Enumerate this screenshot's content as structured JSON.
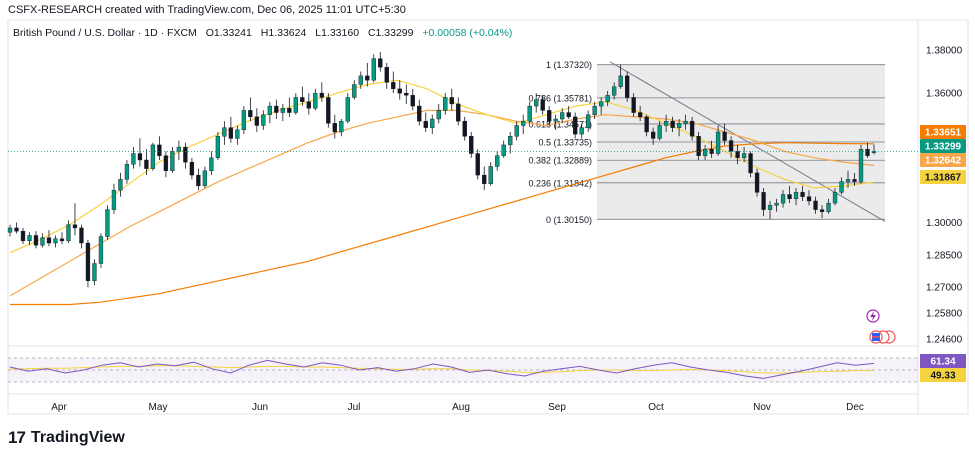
{
  "header": {
    "credit": "CSFX-RESEARCH created with TradingView.com, Dec 06, 2025 11:01 UTC+5:30",
    "symbol": "British Pound / U.S. Dollar · 1D · FXCM",
    "open": "O1.33241",
    "high": "H1.33624",
    "low": "L1.33160",
    "close": "C1.33299",
    "change": "+0.00058 (+0.04%)"
  },
  "brand": {
    "logo": "17",
    "name": "TradingView"
  },
  "colors": {
    "up": "#26a69a",
    "down": "#ef5350",
    "candle_body_up": "#089981",
    "candle_body_down": "#131722",
    "ma_slow": "#f57c00",
    "ma_mid": "#f7a64a",
    "ma_fast": "#f5d33f",
    "rsi": "#7e57c2",
    "rsi_ma": "#f5d33f",
    "fib_zone": "#e8e8e8",
    "trendline": "#787b86"
  },
  "chart_data": {
    "type": "candlestick",
    "price_axis": {
      "ticks": [
        "1.38000",
        "1.36000",
        "1.34000",
        "1.32000",
        "1.30000",
        "1.28500",
        "1.27000",
        "1.25800",
        "1.24600"
      ]
    },
    "time_axis": {
      "ticks": [
        "Apr",
        "May",
        "Jun",
        "Jul",
        "Aug",
        "Sep",
        "Oct",
        "Nov",
        "Dec"
      ]
    },
    "price_labels": [
      {
        "value": "1.33651",
        "color": "#f57c00",
        "text_color": "#ffffff"
      },
      {
        "value": "1.33299",
        "color": "#089981",
        "text_color": "#ffffff"
      },
      {
        "value": "1.32642",
        "color": "#f7a64a",
        "text_color": "#ffffff"
      },
      {
        "value": "1.31867",
        "color": "#f5d33f",
        "text_color": "#131722"
      }
    ],
    "fibonacci": [
      {
        "label": "1 (1.37320)",
        "value": 1.3732
      },
      {
        "label": "0.786 (1.35781)",
        "value": 1.35781
      },
      {
        "label": "0.618 (1.34571)",
        "value": 1.34571
      },
      {
        "label": "0.5 (1.33735)",
        "value": 1.33735
      },
      {
        "label": "0.382 (1.32889)",
        "value": 1.32889
      },
      {
        "label": "0.236 (1.31842)",
        "value": 1.31842
      },
      {
        "label": "0 (1.30150)",
        "value": 1.3015
      }
    ],
    "rsi": {
      "value": "61.34",
      "ma_value": "49.33"
    },
    "ohlc": [
      [
        1.2955,
        1.299,
        1.2935,
        1.2975
      ],
      [
        1.2975,
        1.3,
        1.295,
        1.296
      ],
      [
        1.296,
        1.2975,
        1.29,
        1.2915
      ],
      [
        1.2915,
        1.2955,
        1.2895,
        1.294
      ],
      [
        1.294,
        1.296,
        1.288,
        1.2895
      ],
      [
        1.2895,
        1.295,
        1.2885,
        1.293
      ],
      [
        1.293,
        1.2965,
        1.289,
        1.2905
      ],
      [
        1.2905,
        1.294,
        1.2885,
        1.2925
      ],
      [
        1.2925,
        1.2955,
        1.29,
        1.2915
      ],
      [
        1.2915,
        1.301,
        1.2905,
        1.299
      ],
      [
        1.299,
        1.309,
        1.294,
        1.2975
      ],
      [
        1.2975,
        1.299,
        1.288,
        1.2905
      ],
      [
        1.2905,
        1.292,
        1.27,
        1.273
      ],
      [
        1.273,
        1.283,
        1.271,
        1.281
      ],
      [
        1.281,
        1.295,
        1.279,
        1.2935
      ],
      [
        1.2935,
        1.308,
        1.292,
        1.306
      ],
      [
        1.306,
        1.318,
        1.304,
        1.315
      ],
      [
        1.315,
        1.323,
        1.312,
        1.32
      ],
      [
        1.32,
        1.329,
        1.318,
        1.327
      ],
      [
        1.327,
        1.335,
        1.325,
        1.332
      ],
      [
        1.332,
        1.339,
        1.326,
        1.329
      ],
      [
        1.329,
        1.334,
        1.322,
        1.325
      ],
      [
        1.325,
        1.337,
        1.324,
        1.336
      ],
      [
        1.336,
        1.34,
        1.329,
        1.331
      ],
      [
        1.331,
        1.333,
        1.321,
        1.324
      ],
      [
        1.324,
        1.335,
        1.323,
        1.333
      ],
      [
        1.333,
        1.338,
        1.329,
        1.335
      ],
      [
        1.335,
        1.337,
        1.325,
        1.328
      ],
      [
        1.328,
        1.33,
        1.32,
        1.322
      ],
      [
        1.322,
        1.325,
        1.315,
        1.317
      ],
      [
        1.317,
        1.326,
        1.316,
        1.324
      ],
      [
        1.324,
        1.333,
        1.322,
        1.33
      ],
      [
        1.33,
        1.342,
        1.329,
        1.34
      ],
      [
        1.34,
        1.347,
        1.336,
        1.344
      ],
      [
        1.344,
        1.349,
        1.337,
        1.339
      ],
      [
        1.339,
        1.345,
        1.336,
        1.343
      ],
      [
        1.343,
        1.354,
        1.341,
        1.352
      ],
      [
        1.352,
        1.358,
        1.347,
        1.349
      ],
      [
        1.349,
        1.353,
        1.342,
        1.345
      ],
      [
        1.345,
        1.352,
        1.343,
        1.35
      ],
      [
        1.35,
        1.356,
        1.346,
        1.354
      ],
      [
        1.354,
        1.357,
        1.348,
        1.351
      ],
      [
        1.351,
        1.355,
        1.347,
        1.353
      ],
      [
        1.353,
        1.358,
        1.349,
        1.351
      ],
      [
        1.351,
        1.36,
        1.35,
        1.358
      ],
      [
        1.358,
        1.363,
        1.354,
        1.356
      ],
      [
        1.356,
        1.36,
        1.35,
        1.353
      ],
      [
        1.353,
        1.362,
        1.352,
        1.36
      ],
      [
        1.36,
        1.365,
        1.356,
        1.358
      ],
      [
        1.358,
        1.36,
        1.344,
        1.346
      ],
      [
        1.346,
        1.35,
        1.339,
        1.342
      ],
      [
        1.342,
        1.348,
        1.34,
        1.347
      ],
      [
        1.347,
        1.36,
        1.346,
        1.358
      ],
      [
        1.358,
        1.366,
        1.357,
        1.364
      ],
      [
        1.364,
        1.37,
        1.362,
        1.368
      ],
      [
        1.368,
        1.374,
        1.363,
        1.366
      ],
      [
        1.366,
        1.378,
        1.365,
        1.376
      ],
      [
        1.376,
        1.379,
        1.37,
        1.372
      ],
      [
        1.372,
        1.374,
        1.362,
        1.365
      ],
      [
        1.365,
        1.37,
        1.36,
        1.362
      ],
      [
        1.362,
        1.366,
        1.357,
        1.36
      ],
      [
        1.36,
        1.364,
        1.355,
        1.359
      ],
      [
        1.359,
        1.362,
        1.352,
        1.354
      ],
      [
        1.354,
        1.357,
        1.345,
        1.347
      ],
      [
        1.347,
        1.351,
        1.342,
        1.344
      ],
      [
        1.344,
        1.35,
        1.341,
        1.348
      ],
      [
        1.348,
        1.355,
        1.346,
        1.352
      ],
      [
        1.352,
        1.36,
        1.35,
        1.358
      ],
      [
        1.358,
        1.362,
        1.352,
        1.355
      ],
      [
        1.355,
        1.358,
        1.345,
        1.347
      ],
      [
        1.347,
        1.349,
        1.338,
        1.34
      ],
      [
        1.34,
        1.342,
        1.33,
        1.332
      ],
      [
        1.332,
        1.334,
        1.32,
        1.322
      ],
      [
        1.322,
        1.326,
        1.315,
        1.318
      ],
      [
        1.318,
        1.328,
        1.317,
        1.326
      ],
      [
        1.326,
        1.333,
        1.324,
        1.331
      ],
      [
        1.331,
        1.338,
        1.33,
        1.336
      ],
      [
        1.336,
        1.342,
        1.332,
        1.34
      ],
      [
        1.34,
        1.347,
        1.338,
        1.345
      ],
      [
        1.345,
        1.35,
        1.341,
        1.347
      ],
      [
        1.347,
        1.356,
        1.346,
        1.354
      ],
      [
        1.354,
        1.36,
        1.351,
        1.357
      ],
      [
        1.357,
        1.359,
        1.35,
        1.352
      ],
      [
        1.352,
        1.354,
        1.345,
        1.347
      ],
      [
        1.347,
        1.35,
        1.343,
        1.348
      ],
      [
        1.348,
        1.353,
        1.346,
        1.351
      ],
      [
        1.351,
        1.354,
        1.348,
        1.349
      ],
      [
        1.349,
        1.351,
        1.339,
        1.341
      ],
      [
        1.341,
        1.346,
        1.339,
        1.344
      ],
      [
        1.344,
        1.352,
        1.342,
        1.35
      ],
      [
        1.35,
        1.356,
        1.348,
        1.354
      ],
      [
        1.354,
        1.358,
        1.35,
        1.356
      ],
      [
        1.356,
        1.361,
        1.354,
        1.359
      ],
      [
        1.359,
        1.365,
        1.357,
        1.363
      ],
      [
        1.363,
        1.3732,
        1.362,
        1.368
      ],
      [
        1.368,
        1.37,
        1.356,
        1.358
      ],
      [
        1.358,
        1.36,
        1.349,
        1.351
      ],
      [
        1.351,
        1.354,
        1.347,
        1.349
      ],
      [
        1.349,
        1.35,
        1.34,
        1.342
      ],
      [
        1.342,
        1.344,
        1.336,
        1.339
      ],
      [
        1.339,
        1.347,
        1.338,
        1.345
      ],
      [
        1.345,
        1.35,
        1.342,
        1.347
      ],
      [
        1.347,
        1.349,
        1.342,
        1.344
      ],
      [
        1.344,
        1.348,
        1.34,
        1.346
      ],
      [
        1.346,
        1.35,
        1.343,
        1.347
      ],
      [
        1.347,
        1.349,
        1.338,
        1.34
      ],
      [
        1.34,
        1.342,
        1.329,
        1.331
      ],
      [
        1.331,
        1.336,
        1.329,
        1.334
      ],
      [
        1.334,
        1.338,
        1.33,
        1.332
      ],
      [
        1.332,
        1.345,
        1.331,
        1.342
      ],
      [
        1.342,
        1.346,
        1.336,
        1.338
      ],
      [
        1.338,
        1.34,
        1.33,
        1.333
      ],
      [
        1.333,
        1.336,
        1.327,
        1.33
      ],
      [
        1.33,
        1.335,
        1.328,
        1.332
      ],
      [
        1.332,
        1.333,
        1.321,
        1.323
      ],
      [
        1.323,
        1.325,
        1.312,
        1.314
      ],
      [
        1.314,
        1.316,
        1.303,
        1.306
      ],
      [
        1.306,
        1.31,
        1.3015,
        1.308
      ],
      [
        1.308,
        1.311,
        1.305,
        1.309
      ],
      [
        1.309,
        1.315,
        1.307,
        1.313
      ],
      [
        1.313,
        1.317,
        1.309,
        1.311
      ],
      [
        1.311,
        1.316,
        1.308,
        1.314
      ],
      [
        1.314,
        1.317,
        1.31,
        1.312
      ],
      [
        1.312,
        1.315,
        1.308,
        1.31
      ],
      [
        1.31,
        1.312,
        1.304,
        1.306
      ],
      [
        1.306,
        1.308,
        1.302,
        1.305
      ],
      [
        1.305,
        1.311,
        1.304,
        1.309
      ],
      [
        1.309,
        1.316,
        1.308,
        1.314
      ],
      [
        1.314,
        1.321,
        1.313,
        1.319
      ],
      [
        1.319,
        1.324,
        1.316,
        1.32
      ],
      [
        1.32,
        1.323,
        1.317,
        1.319
      ],
      [
        1.319,
        1.336,
        1.318,
        1.334
      ],
      [
        1.334,
        1.337,
        1.33,
        1.331
      ],
      [
        1.3324,
        1.3362,
        1.3316,
        1.333
      ]
    ],
    "ma_slow": [
      1.262,
      1.262,
      1.262,
      1.263,
      1.265,
      1.267,
      1.27,
      1.273,
      1.276,
      1.279,
      1.282,
      1.286,
      1.29,
      1.294,
      1.298,
      1.302,
      1.306,
      1.31,
      1.314,
      1.318,
      1.322,
      1.326,
      1.33,
      1.333,
      1.3355,
      1.3365,
      1.337,
      1.3368,
      1.3366,
      1.3365
    ],
    "ma_mid": [
      1.266,
      1.274,
      1.282,
      1.29,
      1.298,
      1.305,
      1.312,
      1.319,
      1.325,
      1.331,
      1.337,
      1.342,
      1.346,
      1.349,
      1.352,
      1.352,
      1.35,
      1.347,
      1.345,
      1.348,
      1.35,
      1.349,
      1.348,
      1.346,
      1.342,
      1.338,
      1.333,
      1.33,
      1.328,
      1.3265
    ],
    "ma_fast": [
      1.286,
      1.292,
      1.299,
      1.308,
      1.318,
      1.328,
      1.335,
      1.341,
      1.347,
      1.352,
      1.356,
      1.36,
      1.364,
      1.366,
      1.362,
      1.355,
      1.35,
      1.346,
      1.35,
      1.354,
      1.356,
      1.352,
      1.346,
      1.34,
      1.333,
      1.326,
      1.32,
      1.316,
      1.317,
      1.3187
    ],
    "rsi_series": [
      55,
      48,
      52,
      45,
      50,
      58,
      62,
      55,
      60,
      57,
      63,
      52,
      45,
      58,
      66,
      60,
      55,
      62,
      58,
      50,
      54,
      48,
      52,
      60,
      55,
      46,
      50,
      44,
      40,
      48,
      52,
      56,
      50,
      45,
      52,
      58,
      62,
      55,
      50,
      46,
      40,
      36,
      42,
      48,
      55,
      62,
      58,
      61
    ],
    "rsi_ma_series": [
      52,
      52,
      53,
      53,
      54,
      55,
      56,
      56,
      57,
      57,
      56,
      55,
      54,
      55,
      56,
      56,
      55,
      55,
      54,
      53,
      52,
      51,
      51,
      52,
      52,
      50,
      49,
      48,
      46,
      46,
      47,
      49,
      50,
      50,
      49,
      49,
      50,
      51,
      50,
      49,
      47,
      45,
      45,
      46,
      47,
      48,
      49,
      49
    ]
  }
}
